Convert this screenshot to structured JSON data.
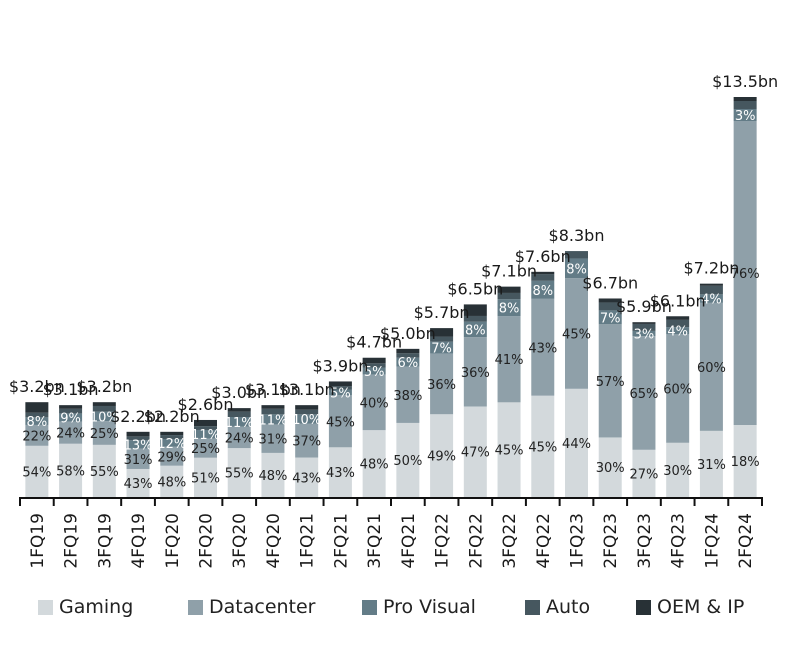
{
  "chart_data": {
    "type": "bar",
    "stacked": true,
    "title": "",
    "xlabel": "",
    "ylabel": "",
    "grid": false,
    "legend_position": "bottom",
    "categories": [
      "1FQ19",
      "2FQ19",
      "3FQ19",
      "4FQ19",
      "1FQ20",
      "2FQ20",
      "3FQ20",
      "4FQ20",
      "1FQ21",
      "2FQ21",
      "3FQ21",
      "4FQ21",
      "1FQ22",
      "2FQ22",
      "3FQ22",
      "4FQ22",
      "1FQ23",
      "2FQ23",
      "3FQ23",
      "4FQ23",
      "1FQ24",
      "2FQ24"
    ],
    "totals": [
      3.2,
      3.1,
      3.2,
      2.2,
      2.2,
      2.6,
      3.0,
      3.1,
      3.1,
      3.9,
      4.7,
      5.0,
      5.7,
      6.5,
      7.1,
      7.6,
      8.3,
      6.7,
      5.9,
      6.1,
      7.2,
      13.5
    ],
    "total_labels": [
      "$3.2bn",
      "$3.1bn",
      "$3.2bn",
      "$2.2bn",
      "$2.2bn",
      "$2.6bn",
      "$3.0bn",
      "$3.1bn",
      "$3.1bn",
      "$3.9bn",
      "$4.7bn",
      "$5.0bn",
      "$5.7bn",
      "$6.5bn",
      "$7.1bn",
      "$7.6bn",
      "$8.3bn",
      "$6.7bn",
      "$5.9bn",
      "$6.1bn",
      "$7.2bn",
      "$13.5bn"
    ],
    "unit": "share of quarterly revenue (%)",
    "series": [
      {
        "name": "Gaming",
        "color": "#d3d9dc",
        "values": [
          54,
          58,
          55,
          43,
          48,
          51,
          55,
          48,
          43,
          43,
          48,
          50,
          49,
          47,
          45,
          45,
          44,
          30,
          27,
          30,
          31,
          18
        ]
      },
      {
        "name": "Datacenter",
        "color": "#8fa0a9",
        "values": [
          22,
          24,
          25,
          31,
          29,
          25,
          24,
          31,
          37,
          45,
          40,
          38,
          36,
          36,
          41,
          43,
          45,
          57,
          65,
          60,
          60,
          76
        ]
      },
      {
        "name": "Pro Visual",
        "color": "#637c87",
        "values": [
          8,
          9,
          10,
          13,
          12,
          11,
          11,
          11,
          10,
          5,
          5,
          6,
          7,
          8,
          8,
          8,
          8,
          7,
          3,
          4,
          4,
          3
        ]
      },
      {
        "name": "Auto",
        "color": "#46575f",
        "values": [
          5,
          5,
          6,
          6,
          6,
          5,
          6,
          6,
          5,
          3,
          3,
          3,
          3,
          3,
          3,
          3,
          3,
          4,
          4,
          4,
          4,
          2
        ]
      },
      {
        "name": "OEM & IP",
        "color": "#283136",
        "values": [
          11,
          4,
          4,
          7,
          5,
          8,
          4,
          4,
          5,
          4,
          4,
          3,
          5,
          6,
          3,
          1,
          0,
          2,
          1,
          2,
          1,
          1
        ]
      }
    ],
    "labeled_series": [
      "Gaming",
      "Datacenter",
      "Pro Visual"
    ],
    "label_colors": {
      "Gaming": "#222222",
      "Datacenter": "#222222",
      "Pro Visual": "#ffffff"
    },
    "ylim": [
      0,
      13.5
    ]
  }
}
